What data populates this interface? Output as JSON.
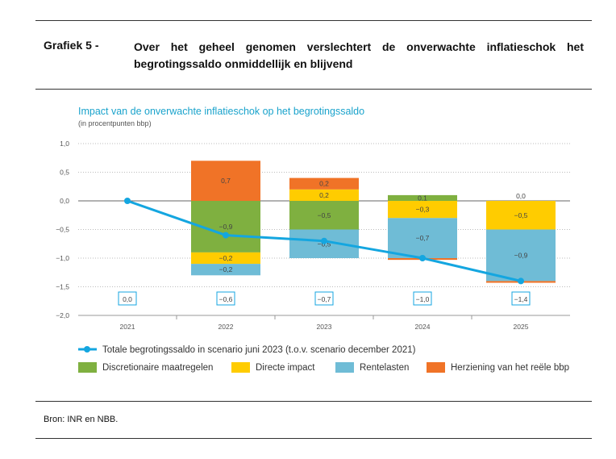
{
  "header": {
    "label": "Grafiek 5 -",
    "title": "Over het geheel genomen verslechtert de onverwachte inflatieschok het begrotingssaldo onmiddellijk en blijvend"
  },
  "source": "Bron: INR en NBB.",
  "chart_data": {
    "type": "bar",
    "stacked": true,
    "title": "Impact van de onverwachte inflatieschok op het begrotingssaldo",
    "subtitle": "(in procentpunten bbp)",
    "categories": [
      "2021",
      "2022",
      "2023",
      "2024",
      "2025"
    ],
    "ylim": [
      -2.0,
      1.0
    ],
    "yticks": [
      "1,0",
      "0,5",
      "0,0",
      "−0,5",
      "−1,0",
      "−1,5",
      "−2,0"
    ],
    "ytick_values": [
      1.0,
      0.5,
      0.0,
      -0.5,
      -1.0,
      -1.5,
      -2.0
    ],
    "grid": true,
    "legend_position": "bottom",
    "series": [
      {
        "name": "Discretionaire maatregelen",
        "color": "#7fb040",
        "values": [
          0,
          -0.9,
          -0.5,
          0.1,
          0.0
        ],
        "labels": [
          "",
          "−0,9",
          "−0,5",
          "0,1",
          "0,0"
        ]
      },
      {
        "name": "Directe impact",
        "color": "#ffcc00",
        "values": [
          0,
          -0.2,
          0.2,
          -0.3,
          -0.5
        ],
        "labels": [
          "",
          "−0,2",
          "0,2",
          "−0,3",
          "−0,5"
        ]
      },
      {
        "name": "Rentelasten",
        "color": "#6fbcd6",
        "values": [
          0,
          -0.2,
          -0.5,
          -0.7,
          -0.9
        ],
        "labels": [
          "",
          "−0,2",
          "−0,5",
          "−0,7",
          "−0,9"
        ]
      },
      {
        "name": "Herziening van het reële bbp",
        "color": "#f07327",
        "values": [
          0,
          0.7,
          0.2,
          -0.03,
          -0.03
        ],
        "labels": [
          "",
          "0,7",
          "0,2",
          "",
          ""
        ]
      }
    ],
    "line": {
      "name": "Totale begrotingssaldo in scenario juni 2023 (t.o.v. scenario december 2021)",
      "color": "#14a6e0",
      "values": [
        0.0,
        -0.6,
        -0.7,
        -1.0,
        -1.4
      ],
      "labels": [
        "0,0",
        "−0,6",
        "−0,7",
        "−1,0",
        "−1,4"
      ]
    }
  }
}
